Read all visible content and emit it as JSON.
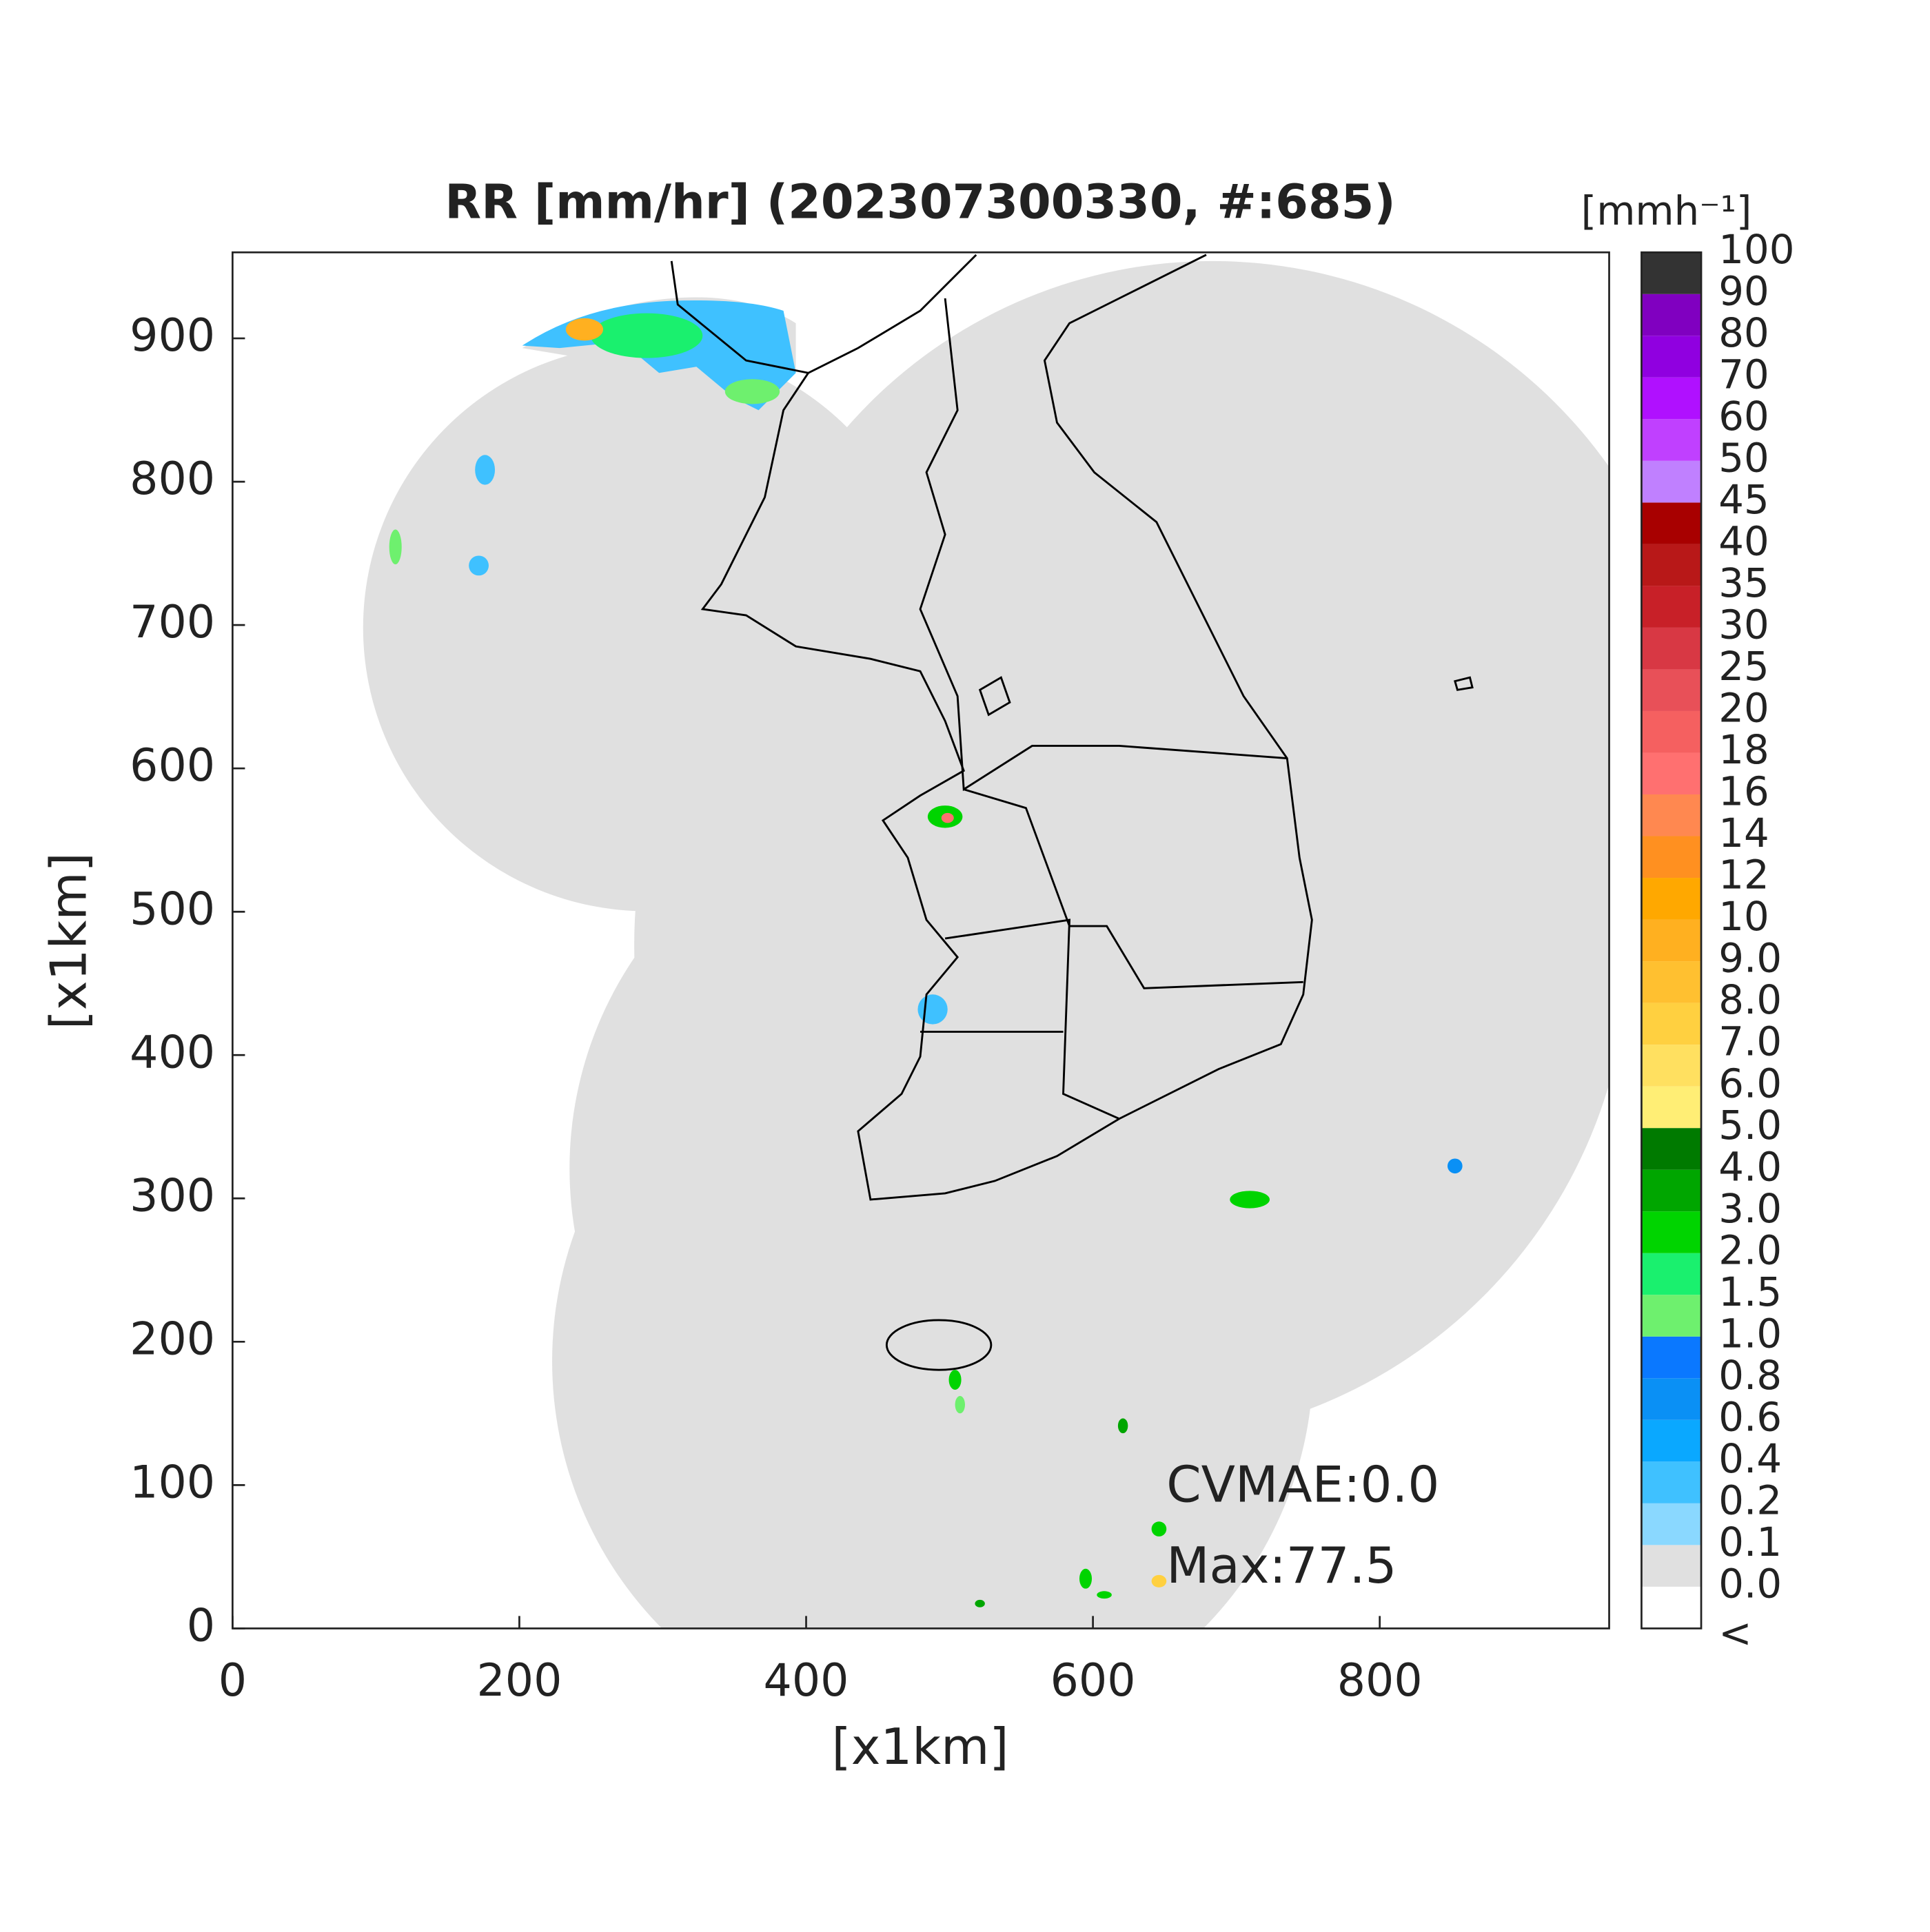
{
  "chart_data": {
    "type": "radar-map",
    "title": "RR [mm/hr] (202307300330, #:685)",
    "x_label": "[x1km]",
    "y_label": "[x1km]",
    "xlim": [
      0,
      960
    ],
    "ylim": [
      0,
      960
    ],
    "xticks": [
      0,
      200,
      400,
      600,
      800
    ],
    "yticks": [
      0,
      100,
      200,
      300,
      400,
      500,
      600,
      700,
      800,
      900
    ],
    "annotations": [
      "CVMAE:0.0",
      "Max:77.5"
    ],
    "colorbar": {
      "label": "[mmh⁻¹]",
      "ticks": [
        "<",
        "0.0",
        "0.1",
        "0.2",
        "0.4",
        "0.6",
        "0.8",
        "1.0",
        "1.5",
        "2.0",
        "3.0",
        "4.0",
        "5.0",
        "6.0",
        "7.0",
        "8.0",
        "9.0",
        "10",
        "12",
        "14",
        "16",
        "18",
        "20",
        "25",
        "30",
        "35",
        "40",
        "45",
        "50",
        "60",
        "70",
        "80",
        "90",
        "100"
      ],
      "colors": [
        "#ffffff",
        "#e0e0e0",
        "#8ad8ff",
        "#3fc1ff",
        "#0aa8ff",
        "#0a90f5",
        "#0a78ff",
        "#6ef06e",
        "#1af06e",
        "#00d400",
        "#00a600",
        "#007a00",
        "#ffee75",
        "#ffe060",
        "#ffd040",
        "#ffc030",
        "#ffb020",
        "#ffa800",
        "#ff9020",
        "#ff8850",
        "#ff7070",
        "#f56060",
        "#e85058",
        "#d83844",
        "#c82028",
        "#b81818",
        "#a80000",
        "#c080ff",
        "#c040ff",
        "#b010ff",
        "#9000e0",
        "#8000c0",
        "#333333"
      ]
    }
  }
}
